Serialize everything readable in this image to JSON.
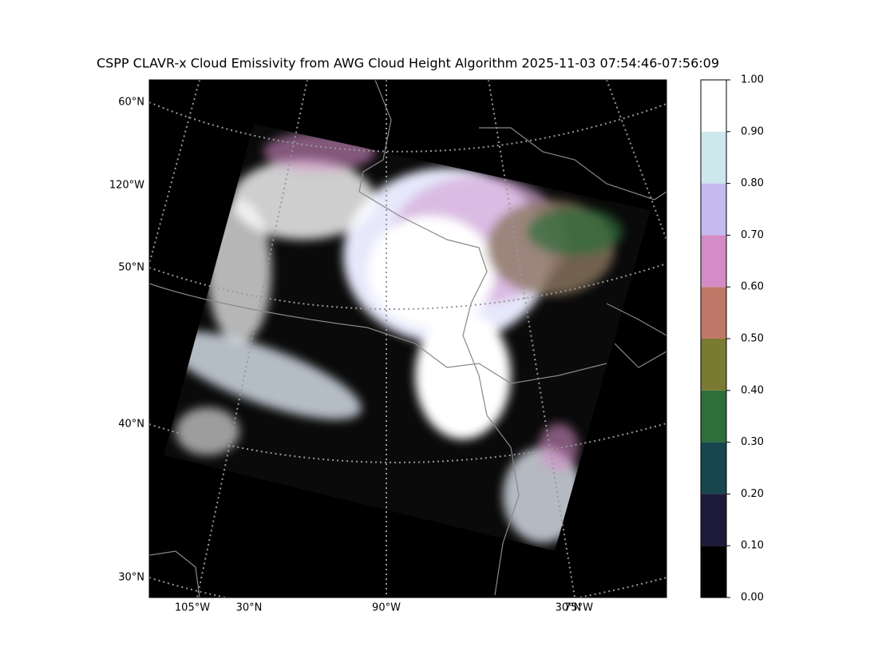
{
  "title": "CSPP CLAVR-x Cloud Emissivity from AWG Cloud Height Algorithm 2025-11-03 07:54:46-07:56:09",
  "map": {
    "left_labels": [
      "60°N",
      "120°W",
      "50°N",
      "40°N",
      "30°N"
    ],
    "bottom_labels": [
      "105°W",
      "30°N",
      "90°W",
      "30°N",
      "75°W"
    ]
  },
  "colorbar": {
    "colors": [
      "#000000",
      "#1e1a3a",
      "#17464f",
      "#2d6e3b",
      "#7a7a32",
      "#c07868",
      "#d48cc6",
      "#c4baef",
      "#cde8ec",
      "#ffffff"
    ],
    "ticks": [
      {
        "value": 0,
        "label": "0.00"
      },
      {
        "value": 0.1,
        "label": "0.10"
      },
      {
        "value": 0.2,
        "label": "0.20"
      },
      {
        "value": 0.3,
        "label": "0.30"
      },
      {
        "value": 0.4,
        "label": "0.40"
      },
      {
        "value": 0.5,
        "label": "0.50"
      },
      {
        "value": 0.6,
        "label": "0.60"
      },
      {
        "value": 0.7,
        "label": "0.70"
      },
      {
        "value": 0.8,
        "label": "0.80"
      },
      {
        "value": 0.9,
        "label": "0.90"
      },
      {
        "value": 1,
        "label": "1.00"
      }
    ]
  }
}
